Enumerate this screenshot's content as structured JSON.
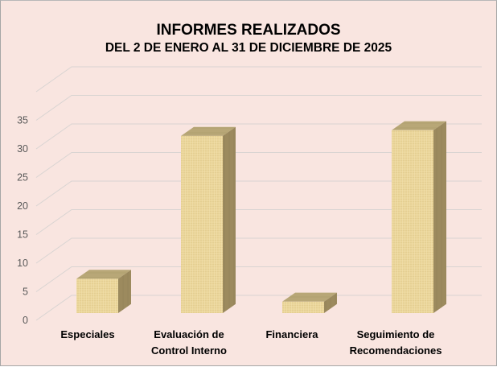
{
  "chart_data": {
    "type": "bar",
    "style": "3d-column",
    "title": "INFORMES REALIZADOS",
    "subtitle": "DEL 2 DE ENERO AL 31 DE DICIEMBRE DE 2025",
    "categories": [
      "Especiales",
      "Evaluación de Control Interno",
      "Financiera",
      "Seguimiento de Recomendaciones"
    ],
    "category_lines": [
      [
        "Especiales"
      ],
      [
        "Evaluación de",
        "Control Interno"
      ],
      [
        "Financiera"
      ],
      [
        "Seguimiento de",
        "Recomendaciones"
      ]
    ],
    "values": [
      6,
      31,
      2,
      32
    ],
    "xlabel": "",
    "ylabel": "",
    "yticks": [
      0,
      5,
      10,
      15,
      20,
      25,
      30,
      35
    ],
    "ylim": [
      0,
      40
    ],
    "grid": true,
    "legend": null
  },
  "colors": {
    "background": "#F9E5E0",
    "border": "#A6A6A6",
    "gridline": "#D9D4D2",
    "bar_front": "#EBD69B",
    "bar_top": "#B8A777",
    "bar_side": "#9C8A5E",
    "tick_text": "#595959"
  }
}
